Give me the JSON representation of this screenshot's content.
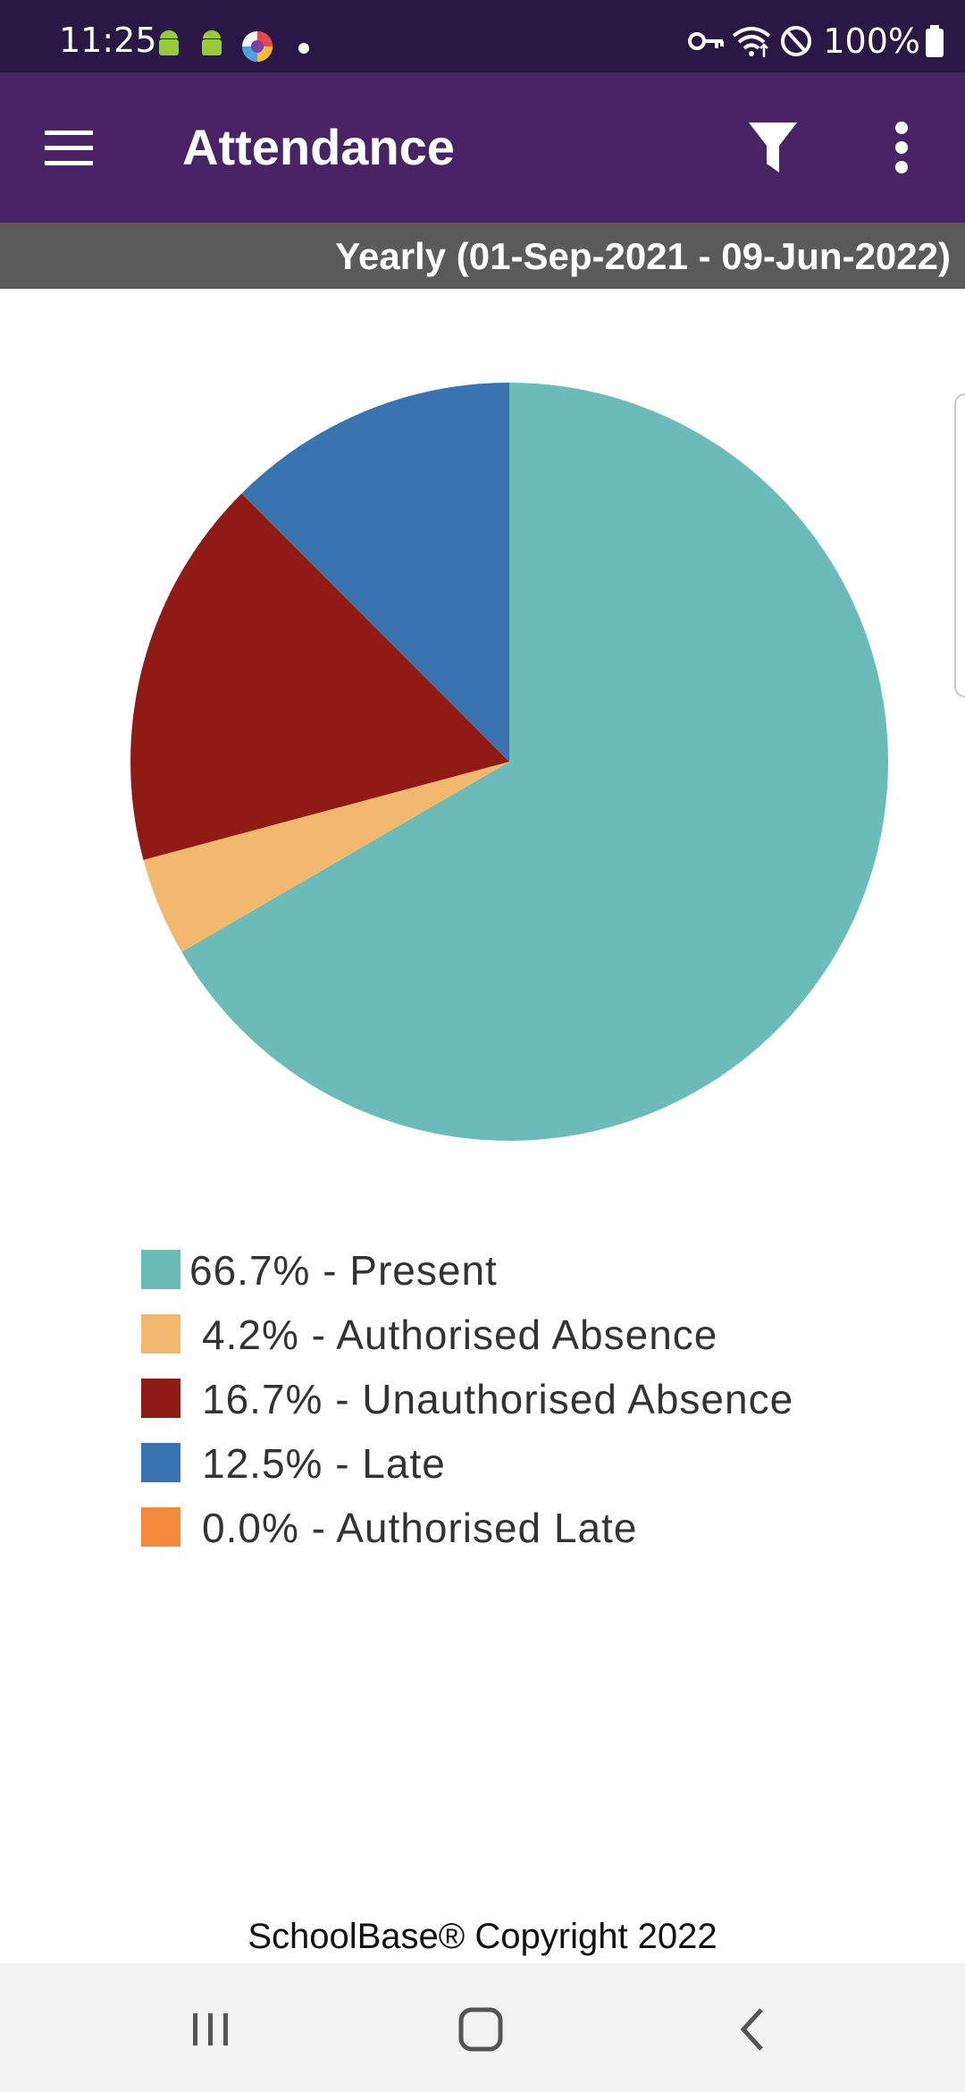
{
  "status_bar": {
    "time": "11:25",
    "battery": "100%",
    "icons_left": [
      "android-icon",
      "android-icon",
      "app-icon",
      "dot-icon"
    ],
    "icons_right": [
      "key-icon",
      "wifi-icon",
      "do-not-disturb-icon",
      "battery-icon"
    ]
  },
  "app_bar": {
    "title": "Attendance",
    "icons": [
      "menu-icon",
      "filter-icon",
      "more-vert-icon"
    ],
    "background": "#482466"
  },
  "period": {
    "label": "Yearly (01-Sep-2021 - 09-Jun-2022)"
  },
  "chart_data": {
    "type": "pie",
    "start_position": "12 o'clock",
    "direction": "clockwise",
    "slices": [
      {
        "label": "66.7% - Present",
        "value": 66.7,
        "color": "#6bbbb9"
      },
      {
        "label": "4.2% - Authorised Absence",
        "value": 4.2,
        "color": "#f2b96e"
      },
      {
        "label": "16.7% - Unauthorised Absence",
        "value": 16.7,
        "color": "#8f1b14"
      },
      {
        "label": "12.5% - Late",
        "value": 12.5,
        "color": "#3a74b0"
      },
      {
        "label": "0.0% - Authorised Late",
        "value": 0.0,
        "color": "#f0893a"
      }
    ],
    "legend_position": "bottom"
  },
  "footer": {
    "copyright": "SchoolBase® Copyright 2022"
  },
  "nav_bar": {
    "icons": [
      "recent-apps-icon",
      "home-icon",
      "back-icon"
    ]
  }
}
